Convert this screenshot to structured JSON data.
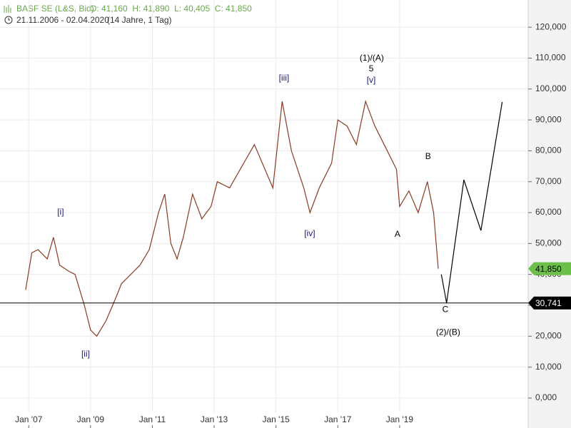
{
  "chart_data": {
    "type": "line",
    "title": "BASF SE (L&S, Bid)",
    "ohlc_text": "O: 41,160  H: 41,890  L: 40,405  C: 41,850",
    "subtitle": "21.11.2006 - 02.04.2020",
    "subtitle_note": "(14 Jahre, 1 Tag)",
    "xlim": [
      2006.07,
      2023.16
    ],
    "ylim": [
      -9700,
      128800
    ],
    "xticks": [
      {
        "value": 2007,
        "label": "Jan '07"
      },
      {
        "value": 2009,
        "label": "Jan '09"
      },
      {
        "value": 2011,
        "label": "Jan '11"
      },
      {
        "value": 2013,
        "label": "Jan '13"
      },
      {
        "value": 2015,
        "label": "Jan '15"
      },
      {
        "value": 2017,
        "label": "Jan '17"
      },
      {
        "value": 2019,
        "label": "Jan '19"
      }
    ],
    "yticks": [
      {
        "value": 0,
        "label": "0,000"
      },
      {
        "value": 10000,
        "label": "10,000"
      },
      {
        "value": 20000,
        "label": "20,000"
      },
      {
        "value": 30000,
        "label": "30,000"
      },
      {
        "value": 40000,
        "label": "40,000"
      },
      {
        "value": 50000,
        "label": "50,000"
      },
      {
        "value": 60000,
        "label": "60,000"
      },
      {
        "value": 70000,
        "label": "70,000"
      },
      {
        "value": 80000,
        "label": "80,000"
      },
      {
        "value": 90000,
        "label": "90,000"
      },
      {
        "value": 100000,
        "label": "100,000"
      },
      {
        "value": 110000,
        "label": "110,000"
      },
      {
        "value": 120000,
        "label": "120,000"
      }
    ],
    "grid": true,
    "series": [
      {
        "color": "#8a3a22",
        "x": [
          2006.9,
          2007.1,
          2007.3,
          2007.6,
          2007.8,
          2008.0,
          2008.3,
          2008.5,
          2008.8,
          2009.0,
          2009.2,
          2009.5,
          2009.8,
          2010.0,
          2010.3,
          2010.6,
          2010.9,
          2011.2,
          2011.4,
          2011.6,
          2011.8,
          2012.0,
          2012.3,
          2012.6,
          2012.9,
          2013.1,
          2013.5,
          2013.9,
          2014.3,
          2014.6,
          2014.9,
          2015.2,
          2015.5,
          2015.9,
          2016.1,
          2016.4,
          2016.8,
          2017.0,
          2017.3,
          2017.6,
          2017.9,
          2018.2,
          2018.5,
          2018.9,
          2019.0,
          2019.3,
          2019.6,
          2019.9,
          2020.1,
          2020.25
        ],
        "values": [
          35000,
          47000,
          48000,
          45000,
          52000,
          43000,
          41000,
          40000,
          30000,
          22000,
          20000,
          25000,
          32000,
          37000,
          40000,
          43000,
          48000,
          60000,
          66000,
          50000,
          45000,
          52000,
          66000,
          58000,
          62000,
          70000,
          68000,
          75000,
          82000,
          75000,
          68000,
          96000,
          80000,
          68000,
          60000,
          68000,
          76000,
          90000,
          88000,
          82000,
          96000,
          88000,
          82000,
          74000,
          62000,
          67000,
          60000,
          70000,
          60000,
          41850
        ]
      },
      {
        "color": "#000000",
        "x": [
          2020.35,
          2020.52,
          2021.08,
          2021.63,
          2022.32
        ],
        "values": [
          40000,
          30741,
          70600,
          54200,
          95800
        ]
      }
    ],
    "level": {
      "value": 30741,
      "label": "30,741"
    },
    "last_price": {
      "value": 41850,
      "label": "41,850"
    },
    "annotations": [
      {
        "text": "[i]",
        "x": 2008.03,
        "y": 60000,
        "color": "#1a1a6e"
      },
      {
        "text": "[ii]",
        "x": 2008.84,
        "y": 14080,
        "color": "#1a1a6e"
      },
      {
        "text": "[iii]",
        "x": 2015.26,
        "y": 103400,
        "color": "#1a1a6e"
      },
      {
        "text": "[iv]",
        "x": 2016.09,
        "y": 53100,
        "color": "#1a1a6e"
      },
      {
        "text": "[v]",
        "x": 2018.08,
        "y": 102700,
        "color": "#1a1a6e"
      },
      {
        "text": "5",
        "x": 2018.08,
        "y": 106400,
        "color": "#000000"
      },
      {
        "text": "(1)/(A)",
        "x": 2018.1,
        "y": 109900,
        "color": "#000000"
      },
      {
        "text": "A",
        "x": 2018.93,
        "y": 52850,
        "color": "#000000"
      },
      {
        "text": "B",
        "x": 2019.92,
        "y": 78000,
        "color": "#000000"
      },
      {
        "text": "C",
        "x": 2020.48,
        "y": 28600,
        "color": "#000000"
      },
      {
        "text": "(2)/(B)",
        "x": 2020.57,
        "y": 21200,
        "color": "#000000"
      }
    ]
  }
}
